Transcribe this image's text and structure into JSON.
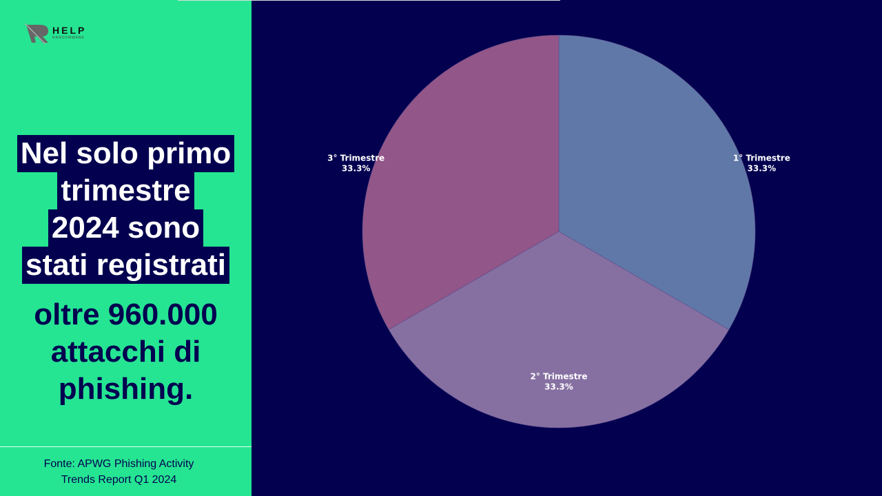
{
  "logo": {
    "text": "HELP",
    "subtext": "RANSOMWARE"
  },
  "headline_lines": [
    "Nel solo primo",
    "trimestre",
    "2024 sono",
    "stati registrati"
  ],
  "subheadline_lines": [
    "oltre 960.000",
    "attacchi di",
    "phishing."
  ],
  "source_lines": [
    "Fonte: APWG Phishing Activity",
    "Trends Report Q1 2024"
  ],
  "colors": {
    "background": "#03004f",
    "panel": "#25e592"
  },
  "chart_data": {
    "type": "pie",
    "categories": [
      "1° Trimestre",
      "2° Trimestre",
      "3° Trimestre"
    ],
    "values": [
      33.3,
      33.3,
      33.3
    ],
    "labels": [
      "33.3%",
      "33.3%",
      "33.3%"
    ],
    "colors": [
      "#6078a8",
      "#8670a2",
      "#925688"
    ],
    "start": "top, clockwise"
  }
}
